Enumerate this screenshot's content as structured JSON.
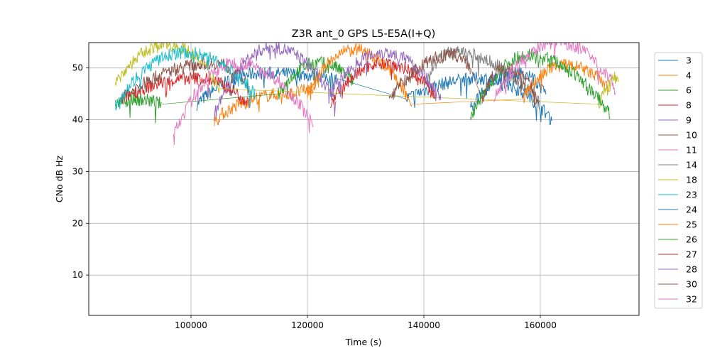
{
  "chart_data": {
    "type": "line",
    "title": "Z3R ant_0 GPS L5-E5A(I+Q)",
    "xlabel": "Time (s)",
    "ylabel": "CNo dB Hz",
    "xlim": [
      82440,
      176950
    ],
    "ylim": [
      2.2,
      54.9
    ],
    "xticks": [
      100000,
      120000,
      140000,
      160000
    ],
    "xtick_labels": [
      "100000",
      "120000",
      "140000",
      "160000"
    ],
    "yticks": [
      10,
      20,
      30,
      40,
      50
    ],
    "ytick_labels": [
      "10",
      "20",
      "30",
      "40",
      "50"
    ],
    "grid": true,
    "legend_position": "outside-right",
    "series": [
      {
        "name": "3",
        "color": "#1f77b4",
        "segments": [
          [
            101000,
            43,
            112000,
            49,
            125000,
            48
          ],
          [
            137000,
            44,
            150000,
            48,
            162000,
            40
          ]
        ]
      },
      {
        "name": "4",
        "color": "#ff7f0e",
        "segments": [
          [
            104000,
            40,
            116000,
            45,
            122000,
            47
          ]
        ]
      },
      {
        "name": "6",
        "color": "#2ca02c",
        "segments": [
          [
            87000,
            43,
            90000,
            44,
            95000,
            43
          ],
          [
            115000,
            45,
            122000,
            51,
            128000,
            47
          ]
        ]
      },
      {
        "name": "8",
        "color": "#d62728",
        "segments": [
          [
            88000,
            44,
            101000,
            48,
            110000,
            43
          ]
        ]
      },
      {
        "name": "9",
        "color": "#9467bd",
        "segments": [
          [
            104000,
            41,
            114000,
            54,
            125000,
            43
          ]
        ]
      },
      {
        "name": "10",
        "color": "#8c564b",
        "segments": [
          [
            88000,
            44,
            104000,
            51,
            110000,
            46
          ]
        ]
      },
      {
        "name": "11",
        "color": "#e377c2",
        "segments": [
          [
            97000,
            37,
            108000,
            51,
            121000,
            39
          ]
        ]
      },
      {
        "name": "14",
        "color": "#7f7f7f",
        "segments": [
          [
            140000,
            47,
            145000,
            53,
            160000,
            43
          ]
        ]
      },
      {
        "name": "18",
        "color": "#bcbd22",
        "segments": [
          [
            87000,
            47,
            96000,
            54.5,
            105000,
            46
          ],
          [
            170000,
            43,
            173000,
            48,
            173500,
            48
          ]
        ]
      },
      {
        "name": "23",
        "color": "#17becf",
        "segments": [
          [
            87000,
            43,
            99000,
            53,
            111000,
            45
          ]
        ]
      },
      {
        "name": "24",
        "color": "#1f77b4",
        "segments": [
          [
            148000,
            42,
            156000,
            49,
            161000,
            45
          ]
        ]
      },
      {
        "name": "25",
        "color": "#ff7f0e",
        "segments": [
          [
            120000,
            45,
            128000,
            53.5,
            138000,
            43
          ],
          [
            157000,
            44,
            164000,
            50.5,
            172000,
            46
          ]
        ]
      },
      {
        "name": "26",
        "color": "#2ca02c",
        "segments": [
          [
            148000,
            40,
            158000,
            52.5,
            172000,
            41
          ]
        ]
      },
      {
        "name": "27",
        "color": "#d62728",
        "segments": [
          [
            124000,
            43,
            133000,
            51,
            142000,
            45
          ]
        ]
      },
      {
        "name": "28",
        "color": "#9467bd",
        "segments": [
          [
            124000,
            45,
            133000,
            53,
            143000,
            44
          ]
        ]
      },
      {
        "name": "30",
        "color": "#8c564b",
        "segments": [
          [
            134000,
            44,
            145000,
            52.5,
            148000,
            50
          ],
          [
            150000,
            44,
            154000,
            50,
            160000,
            43
          ]
        ]
      },
      {
        "name": "32",
        "color": "#e377c2",
        "segments": [
          [
            152000,
            44,
            163000,
            55,
            173000,
            46
          ]
        ]
      }
    ]
  }
}
